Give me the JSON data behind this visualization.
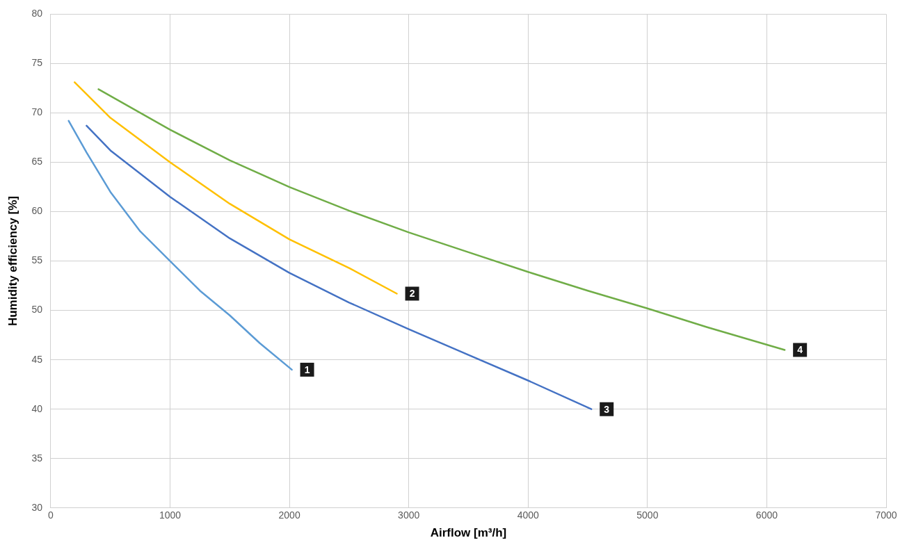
{
  "chart_data": {
    "type": "line",
    "xlabel": "Airflow [m³/h]",
    "ylabel": "Humidity efficiency [%]",
    "xlim": [
      0,
      7000
    ],
    "xticks": [
      0,
      1000,
      2000,
      3000,
      4000,
      5000,
      6000,
      7000
    ],
    "ylim": [
      30,
      80
    ],
    "yticks": [
      30,
      35,
      40,
      45,
      50,
      55,
      60,
      65,
      70,
      75,
      80
    ],
    "grid": true,
    "legend": false,
    "marker": "none",
    "line_style": "solid",
    "series": [
      {
        "color": "#5b9bd5",
        "x": [
          150,
          300,
          500,
          750,
          1000,
          1250,
          1500,
          1750,
          2020
        ],
        "values": [
          69.2,
          66,
          62,
          58,
          55,
          52,
          49.5,
          46.7,
          44
        ]
      },
      {
        "color": "#ffc000",
        "x": [
          200,
          500,
          1000,
          1500,
          2000,
          2500,
          2900
        ],
        "values": [
          73.1,
          69.5,
          65,
          60.8,
          57.2,
          54.3,
          51.7
        ]
      },
      {
        "color": "#4472c4",
        "x": [
          300,
          500,
          1000,
          1500,
          2000,
          2500,
          3000,
          3500,
          4000,
          4530
        ],
        "values": [
          68.7,
          66.2,
          61.5,
          57.3,
          53.8,
          50.8,
          48.1,
          45.5,
          42.9,
          40
        ]
      },
      {
        "color": "#70ad47",
        "x": [
          400,
          1000,
          1500,
          2000,
          2500,
          3000,
          3500,
          4000,
          4500,
          5000,
          5500,
          6150
        ],
        "values": [
          72.4,
          68.3,
          65.2,
          62.5,
          60.1,
          57.9,
          55.9,
          53.9,
          52,
          50.2,
          48.3,
          46
        ]
      }
    ],
    "annotations": [
      {
        "text": "1",
        "x": 2020,
        "y": 44
      },
      {
        "text": "2",
        "x": 2900,
        "y": 51.7
      },
      {
        "text": "3",
        "x": 4530,
        "y": 40
      },
      {
        "text": "4",
        "x": 6150,
        "y": 46
      }
    ]
  }
}
